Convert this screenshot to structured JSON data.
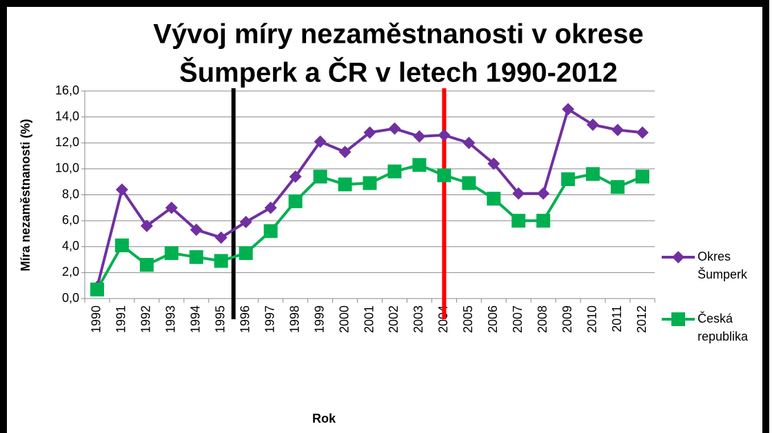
{
  "chart_data": {
    "type": "line",
    "title": [
      "Vývoj míry nezaměstnanosti v okrese",
      "Šumperk a ČR v letech 1990-2012"
    ],
    "xlabel": "Rok",
    "ylabel": "Míra nezaměstnanosti (%)",
    "categories": [
      "1990",
      "1991",
      "1992",
      "1993",
      "1994",
      "1995",
      "1996",
      "1997",
      "1998",
      "1999",
      "2000",
      "2001",
      "2002",
      "2003",
      "2004",
      "2005",
      "2006",
      "2007",
      "2008",
      "2009",
      "2010",
      "2011",
      "2012"
    ],
    "series": [
      {
        "name": "Okres Šumperk",
        "color": "#7030a0",
        "marker": "diamond",
        "values": [
          0.9,
          8.4,
          5.6,
          7.0,
          5.3,
          4.7,
          5.9,
          7.0,
          9.4,
          12.1,
          11.3,
          12.8,
          13.1,
          12.5,
          12.6,
          12.0,
          10.4,
          8.1,
          8.1,
          14.6,
          13.4,
          13.0,
          12.8
        ]
      },
      {
        "name": "Česká republika",
        "color": "#00b050",
        "marker": "square",
        "values": [
          0.7,
          4.1,
          2.6,
          3.5,
          3.2,
          2.9,
          3.5,
          5.2,
          7.5,
          9.4,
          8.8,
          8.9,
          9.8,
          10.3,
          9.5,
          8.9,
          7.7,
          6.0,
          6.0,
          9.2,
          9.6,
          8.6,
          9.4
        ]
      }
    ],
    "ylim": [
      0,
      16
    ],
    "yticks": [
      {
        "value": 0,
        "label": "0,0"
      },
      {
        "value": 2,
        "label": "2,0"
      },
      {
        "value": 4,
        "label": "4,0"
      },
      {
        "value": 6,
        "label": "6,0"
      },
      {
        "value": 8,
        "label": "8,0"
      },
      {
        "value": 10,
        "label": "10,0"
      },
      {
        "value": 12,
        "label": "12,0"
      },
      {
        "value": 14,
        "label": "14,0"
      },
      {
        "value": 16,
        "label": "16,0"
      }
    ],
    "grid": true,
    "legend": "right",
    "vlines": [
      {
        "category": "1995",
        "side": "right",
        "color": "#000000"
      },
      {
        "category": "2004",
        "side": "center",
        "color": "#ff0000"
      }
    ]
  }
}
